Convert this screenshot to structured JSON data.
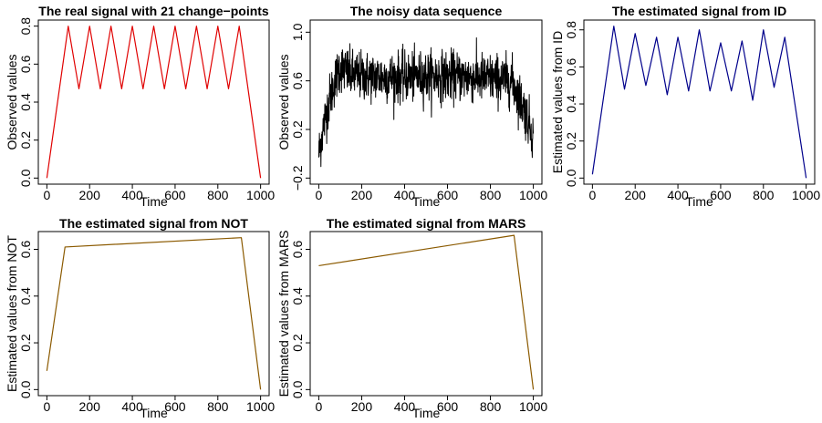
{
  "chart_data": [
    {
      "type": "line",
      "title": "The real signal with 21 change−points",
      "xlabel": "Time",
      "ylabel": "Observed values",
      "xlim": [
        0,
        1000
      ],
      "ylim": [
        0,
        0.8
      ],
      "xticks": [
        "0",
        "200",
        "400",
        "600",
        "800",
        "1000"
      ],
      "yticks": [
        "0.0",
        "0.2",
        "0.4",
        "0.6",
        "0.8"
      ],
      "color": "#e00000",
      "series": [
        {
          "x": [
            0,
            100,
            150,
            200,
            250,
            300,
            350,
            400,
            450,
            500,
            550,
            600,
            650,
            700,
            750,
            800,
            850,
            900,
            1000
          ],
          "y": [
            0.0,
            0.8,
            0.47,
            0.8,
            0.47,
            0.8,
            0.47,
            0.8,
            0.47,
            0.8,
            0.47,
            0.8,
            0.47,
            0.8,
            0.47,
            0.8,
            0.47,
            0.8,
            0.0
          ]
        }
      ]
    },
    {
      "type": "line",
      "title": "The noisy data sequence",
      "xlabel": "Time",
      "ylabel": "Observed values",
      "xlim": [
        0,
        1000
      ],
      "ylim": [
        -0.2,
        1.05
      ],
      "xticks": [
        "0",
        "200",
        "400",
        "600",
        "800",
        "1000"
      ],
      "yticks": [
        "−0.2",
        "0.2",
        "0.6",
        "1.0"
      ],
      "color": "#000000",
      "series": [
        {
          "x": [
            0,
            25,
            50,
            75,
            100,
            125,
            150,
            200,
            300,
            400,
            500,
            600,
            700,
            800,
            900,
            925,
            950,
            975,
            1000
          ],
          "y": [
            0.0,
            0.25,
            0.45,
            0.6,
            0.72,
            0.68,
            0.65,
            0.64,
            0.63,
            0.63,
            0.64,
            0.64,
            0.63,
            0.62,
            0.6,
            0.5,
            0.4,
            0.28,
            0.15
          ],
          "noise_sd": 0.1
        }
      ]
    },
    {
      "type": "line",
      "title": "The estimated signal from ID",
      "xlabel": "Time",
      "ylabel": "Estimated values from ID",
      "xlim": [
        0,
        1000
      ],
      "ylim": [
        0,
        0.82
      ],
      "xticks": [
        "0",
        "200",
        "400",
        "600",
        "800",
        "1000"
      ],
      "yticks": [
        "0.0",
        "0.2",
        "0.4",
        "0.6",
        "0.8"
      ],
      "color": "#00008b",
      "series": [
        {
          "x": [
            0,
            100,
            150,
            200,
            250,
            300,
            350,
            400,
            450,
            500,
            550,
            600,
            650,
            700,
            750,
            800,
            850,
            900,
            1000
          ],
          "y": [
            0.02,
            0.82,
            0.48,
            0.78,
            0.5,
            0.76,
            0.45,
            0.76,
            0.47,
            0.8,
            0.47,
            0.73,
            0.47,
            0.74,
            0.42,
            0.8,
            0.49,
            0.76,
            0.0
          ]
        }
      ]
    },
    {
      "type": "line",
      "title": "The estimated signal from NOT",
      "xlabel": "Time",
      "ylabel": "Estimated values from NOT",
      "xlim": [
        0,
        1000
      ],
      "ylim": [
        0,
        0.65
      ],
      "xticks": [
        "0",
        "200",
        "400",
        "600",
        "800",
        "1000"
      ],
      "yticks": [
        "0.0",
        "0.2",
        "0.4",
        "0.6"
      ],
      "color": "#8b5a00",
      "series": [
        {
          "x": [
            0,
            85,
            910,
            1000
          ],
          "y": [
            0.08,
            0.61,
            0.65,
            0.0
          ]
        }
      ]
    },
    {
      "type": "line",
      "title": "The estimated signal from MARS",
      "xlabel": "Time",
      "ylabel": "Estimated values from MARS",
      "xlim": [
        0,
        1000
      ],
      "ylim": [
        0,
        0.65
      ],
      "xticks": [
        "0",
        "200",
        "400",
        "600",
        "800",
        "1000"
      ],
      "yticks": [
        "0.0",
        "0.2",
        "0.4",
        "0.6"
      ],
      "color": "#8b5a00",
      "series": [
        {
          "x": [
            0,
            910,
            1000
          ],
          "y": [
            0.53,
            0.66,
            0.0
          ]
        }
      ]
    }
  ]
}
